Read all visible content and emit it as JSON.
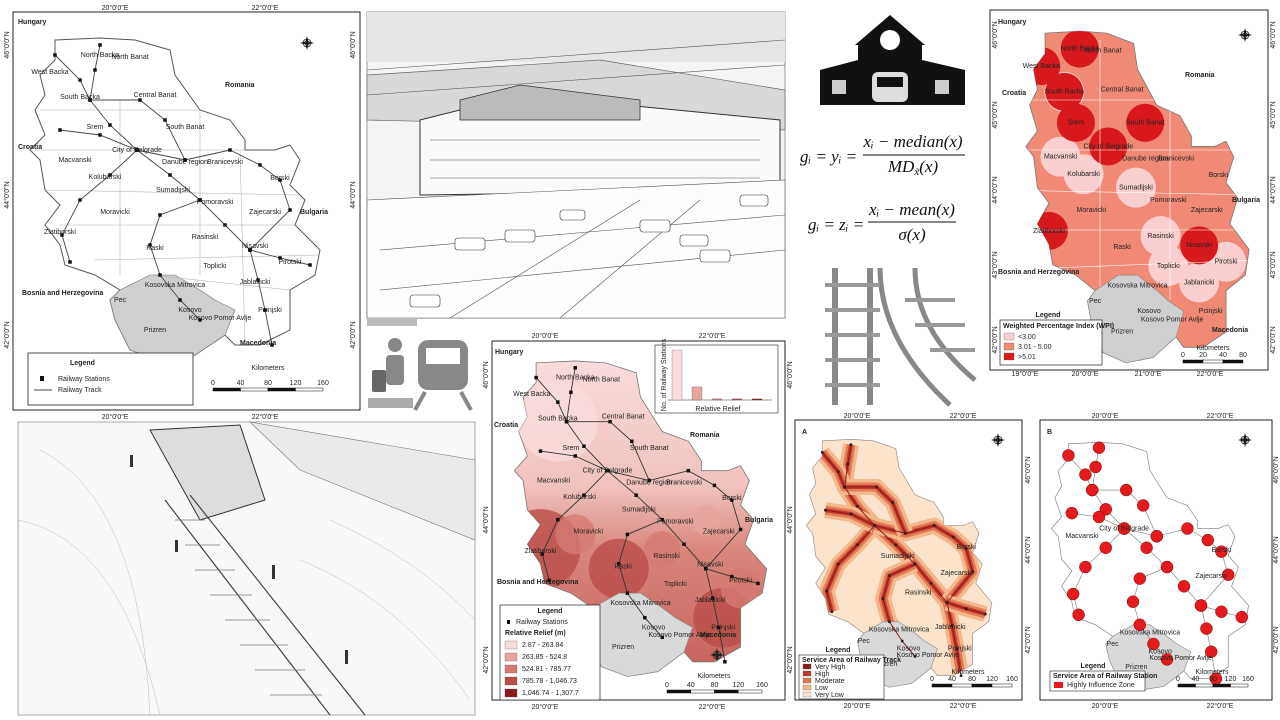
{
  "countries": [
    "Hungary",
    "Romania",
    "Croatia",
    "Bulgaria",
    "Bosnia and Herzegovina",
    "Macedonia"
  ],
  "regions": [
    "North Backa",
    "North Banat",
    "West Backa",
    "South Backa",
    "Central Banat",
    "Srem",
    "South Banat",
    "City of Belgrade",
    "Danube region",
    "Macvanski",
    "Branicevski",
    "Kolubarski",
    "Borski",
    "Sumadijski",
    "Pomoravski",
    "Moravicki",
    "Zajecarski",
    "Zlatiborski",
    "Rasinski",
    "Raski",
    "Nisavski",
    "Toplicki",
    "Pirotski",
    "Jablanicki",
    "Pcinjski",
    "Kosovska Mitrovica",
    "Pec",
    "Kosovo",
    "Kosovo Pomor Avlje",
    "Prizren"
  ],
  "coordinates": {
    "lon": [
      "20°0'0\"E",
      "22°0'0\"E"
    ],
    "lat": [
      "46°0'0\"N",
      "44°0'0\"N",
      "42°0'0\"N"
    ]
  },
  "wpi_coordinates": {
    "lon": [
      "19°0'0\"E",
      "20°0'0\"E",
      "21°0'0\"E",
      "22°0'0\"E"
    ],
    "lat": [
      "46°0'0\"N",
      "45°0'0\"N",
      "44°0'0\"N",
      "43°0'0\"N",
      "42°0'0\"N"
    ]
  },
  "formulas": [
    {
      "lhs": "gᵢ = yᵢ =",
      "numerator": "xᵢ − median(x)",
      "denominator": "MD",
      "denominator_sub": "x̃",
      "denominator_tail": "(x)"
    },
    {
      "lhs": "gᵢ = zᵢ =",
      "numerator": "xᵢ − mean(x)",
      "denominator": "σ(x)"
    }
  ],
  "railway_map": {
    "legend": {
      "title": "Legend",
      "items": [
        "Railway Stations",
        "Railway Track"
      ]
    },
    "scale": {
      "title": "Kilometers",
      "ticks": [
        0,
        40,
        80,
        120,
        160
      ]
    }
  },
  "wpi_map": {
    "legend": {
      "title": "Legend",
      "subtitle": "Weighted Percentage Index (WPI)",
      "classes": [
        {
          "label": "<3.00",
          "color": "#fbcfcf"
        },
        {
          "label": "3.01 - 5.00",
          "color": "#f08a74"
        },
        {
          "label": ">5.01",
          "color": "#d7191c"
        }
      ]
    },
    "scale": {
      "title": "Kilometers",
      "ticks": [
        0,
        20,
        40,
        80
      ]
    }
  },
  "relief_map": {
    "legend": {
      "title": "Legend",
      "items": [
        "Railway Stations"
      ],
      "subtitle": "Relative Relief (m)",
      "classes": [
        {
          "label": "2.87 - 263.84",
          "color": "#f9dcdc"
        },
        {
          "label": "263.85 - 524.8",
          "color": "#e8a5a0"
        },
        {
          "label": "524.81 - 785.77",
          "color": "#d47a72"
        },
        {
          "label": "785.78 - 1,046.73",
          "color": "#b94d47"
        },
        {
          "label": "1,046.74 - 1,307.7",
          "color": "#8b1a1a"
        }
      ]
    },
    "inset": {
      "y_label": "No. of Railway Stations",
      "x_label": "Relative Relief",
      "values": [
        46,
        12,
        1,
        1,
        1
      ]
    },
    "scale": {
      "title": "Kilometers",
      "ticks": [
        0,
        40,
        80,
        120,
        160
      ]
    }
  },
  "service_track_map": {
    "panel": "A",
    "legend": {
      "title": "Legend",
      "subtitle": "Service Area of Railway Track",
      "classes": [
        {
          "label": "Very High",
          "color": "#8b1a1a"
        },
        {
          "label": "High",
          "color": "#c0392b"
        },
        {
          "label": "Moderate",
          "color": "#e07b53"
        },
        {
          "label": "Low",
          "color": "#f3b98c"
        },
        {
          "label": "Very Low",
          "color": "#fbe3cc"
        }
      ]
    },
    "scale": {
      "title": "Kilometers",
      "ticks": [
        0,
        40,
        80,
        120,
        160
      ]
    }
  },
  "service_station_map": {
    "panel": "B",
    "legend": {
      "title": "Legend",
      "subtitle": "Service Area of Railway Station",
      "items": [
        "Highly Influence Zone"
      ],
      "color": "#e41a1c"
    },
    "scale": {
      "title": "Kilometers",
      "ticks": [
        0,
        40,
        80,
        120,
        160
      ]
    }
  }
}
